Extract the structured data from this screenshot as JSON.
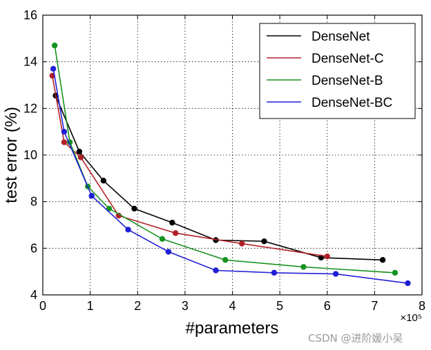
{
  "chart_data": {
    "type": "line",
    "title": "",
    "xlabel": "#parameters",
    "ylabel": "test error (%)",
    "x_exponent_label": "×10⁵",
    "xlim": [
      0,
      8
    ],
    "ylim": [
      4,
      16
    ],
    "xticks": [
      0,
      1,
      2,
      3,
      4,
      5,
      6,
      7,
      8
    ],
    "yticks": [
      4,
      6,
      8,
      10,
      12,
      14,
      16
    ],
    "grid": true,
    "legend_position": "top-right",
    "series": [
      {
        "name": "DenseNet",
        "color": "#000000",
        "x": [
          0.27,
          0.77,
          1.28,
          1.93,
          2.73,
          3.65,
          4.67,
          5.87,
          7.17
        ],
        "y": [
          12.55,
          10.15,
          8.9,
          7.7,
          7.1,
          6.35,
          6.3,
          5.6,
          5.5
        ]
      },
      {
        "name": "DenseNet-C",
        "color": "#b22028",
        "x": [
          0.2,
          0.45,
          0.8,
          1.6,
          2.8,
          4.2,
          6.0
        ],
        "y": [
          13.4,
          10.55,
          9.9,
          7.4,
          6.65,
          6.2,
          5.65
        ]
      },
      {
        "name": "DenseNet-B",
        "color": "#17921f",
        "x": [
          0.25,
          0.57,
          0.95,
          1.4,
          2.52,
          3.85,
          5.5,
          7.43
        ],
        "y": [
          14.7,
          10.55,
          8.65,
          7.7,
          6.4,
          5.5,
          5.2,
          4.95
        ]
      },
      {
        "name": "DenseNet-BC",
        "color": "#1f1fd6",
        "x": [
          0.22,
          0.45,
          1.03,
          1.8,
          2.65,
          3.65,
          4.88,
          6.18,
          7.7
        ],
        "y": [
          13.7,
          11.0,
          8.25,
          6.8,
          5.85,
          5.05,
          4.95,
          4.9,
          4.5
        ]
      }
    ]
  },
  "watermark": "CSDN @进阶媛小吴"
}
